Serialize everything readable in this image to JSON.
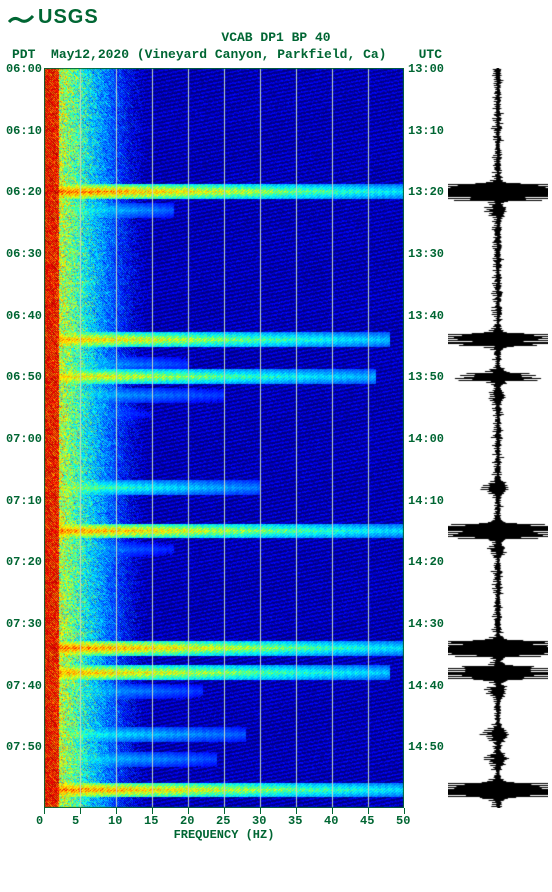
{
  "logo_text": "USGS",
  "title": "VCAB DP1 BP 40",
  "subtitle_left": "PDT",
  "subtitle_center": "May12,2020 (Vineyard Canyon, Parkfield, Ca)",
  "subtitle_right": "UTC",
  "x_axis_title": "FREQUENCY (HZ)",
  "x_ticks": [
    0,
    5,
    10,
    15,
    20,
    25,
    30,
    35,
    40,
    45,
    50
  ],
  "y_ticks_left": [
    "06:00",
    "06:10",
    "06:20",
    "06:30",
    "06:40",
    "06:50",
    "07:00",
    "07:10",
    "07:20",
    "07:30",
    "07:40",
    "07:50"
  ],
  "y_ticks_right": [
    "13:00",
    "13:10",
    "13:20",
    "13:30",
    "13:40",
    "13:50",
    "14:00",
    "14:10",
    "14:20",
    "14:30",
    "14:40",
    "14:50"
  ],
  "spectrogram": {
    "type": "heatmap",
    "freq_range": [
      0,
      50
    ],
    "time_range_rows": 120,
    "base_intensity_freq_cutoff": 8,
    "events": [
      {
        "row": 20,
        "strength": 1.0,
        "extent": 50
      },
      {
        "row": 23,
        "strength": 0.6,
        "extent": 18
      },
      {
        "row": 44,
        "strength": 0.9,
        "extent": 48
      },
      {
        "row": 48,
        "strength": 0.5,
        "extent": 20
      },
      {
        "row": 50,
        "strength": 0.85,
        "extent": 46
      },
      {
        "row": 53,
        "strength": 0.5,
        "extent": 25
      },
      {
        "row": 56,
        "strength": 0.4,
        "extent": 15
      },
      {
        "row": 68,
        "strength": 0.7,
        "extent": 30
      },
      {
        "row": 75,
        "strength": 0.95,
        "extent": 50
      },
      {
        "row": 78,
        "strength": 0.45,
        "extent": 18
      },
      {
        "row": 94,
        "strength": 0.98,
        "extent": 50
      },
      {
        "row": 98,
        "strength": 0.92,
        "extent": 48
      },
      {
        "row": 101,
        "strength": 0.5,
        "extent": 22
      },
      {
        "row": 108,
        "strength": 0.6,
        "extent": 28
      },
      {
        "row": 112,
        "strength": 0.55,
        "extent": 24
      },
      {
        "row": 117,
        "strength": 0.98,
        "extent": 50
      }
    ],
    "colormap": [
      {
        "v": 0.0,
        "c": "#000080"
      },
      {
        "v": 0.15,
        "c": "#0000ff"
      },
      {
        "v": 0.35,
        "c": "#00aaff"
      },
      {
        "v": 0.45,
        "c": "#00ffff"
      },
      {
        "v": 0.55,
        "c": "#66ff66"
      },
      {
        "v": 0.65,
        "c": "#ffff00"
      },
      {
        "v": 0.8,
        "c": "#ff8800"
      },
      {
        "v": 0.9,
        "c": "#ff0000"
      },
      {
        "v": 1.0,
        "c": "#aa0000"
      }
    ],
    "grid_color": "#c0d8c8"
  },
  "waveform": {
    "color": "#000000",
    "baseline_noise": 0.08,
    "events": [
      {
        "row": 20,
        "amp": 1.0
      },
      {
        "row": 23,
        "amp": 0.25
      },
      {
        "row": 44,
        "amp": 0.6
      },
      {
        "row": 50,
        "amp": 0.4
      },
      {
        "row": 53,
        "amp": 0.2
      },
      {
        "row": 68,
        "amp": 0.3
      },
      {
        "row": 75,
        "amp": 0.8
      },
      {
        "row": 78,
        "amp": 0.2
      },
      {
        "row": 94,
        "amp": 0.95
      },
      {
        "row": 98,
        "amp": 0.7
      },
      {
        "row": 101,
        "amp": 0.25
      },
      {
        "row": 108,
        "amp": 0.3
      },
      {
        "row": 112,
        "amp": 0.25
      },
      {
        "row": 117,
        "amp": 0.9
      }
    ]
  },
  "colors": {
    "text": "#006633",
    "background": "#ffffff"
  }
}
